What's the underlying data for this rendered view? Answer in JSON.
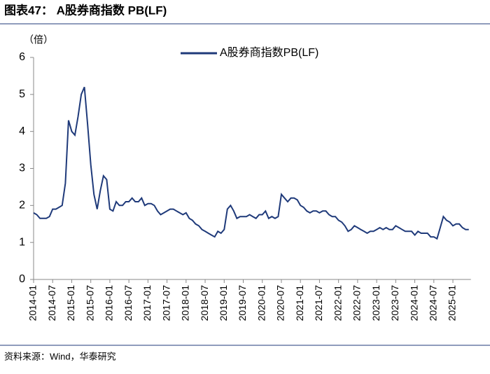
{
  "chart_data": {
    "type": "line",
    "title": "图表47：  A股券商指数 PB(LF)",
    "y_unit": "（倍）",
    "source": "资料来源：Wind，华泰研究",
    "x": [
      "2014-01",
      "2014-02",
      "2014-03",
      "2014-04",
      "2014-05",
      "2014-06",
      "2014-07",
      "2014-08",
      "2014-09",
      "2014-10",
      "2014-11",
      "2014-12",
      "2015-01",
      "2015-02",
      "2015-03",
      "2015-04",
      "2015-05",
      "2015-06",
      "2015-07",
      "2015-08",
      "2015-09",
      "2015-10",
      "2015-11",
      "2015-12",
      "2016-01",
      "2016-02",
      "2016-03",
      "2016-04",
      "2016-05",
      "2016-06",
      "2016-07",
      "2016-08",
      "2016-09",
      "2016-10",
      "2016-11",
      "2016-12",
      "2017-01",
      "2017-02",
      "2017-03",
      "2017-04",
      "2017-05",
      "2017-06",
      "2017-07",
      "2017-08",
      "2017-09",
      "2017-10",
      "2017-11",
      "2017-12",
      "2018-01",
      "2018-02",
      "2018-03",
      "2018-04",
      "2018-05",
      "2018-06",
      "2018-07",
      "2018-08",
      "2018-09",
      "2018-10",
      "2018-11",
      "2018-12",
      "2019-01",
      "2019-02",
      "2019-03",
      "2019-04",
      "2019-05",
      "2019-06",
      "2019-07",
      "2019-08",
      "2019-09",
      "2019-10",
      "2019-11",
      "2019-12",
      "2020-01",
      "2020-02",
      "2020-03",
      "2020-04",
      "2020-05",
      "2020-06",
      "2020-07",
      "2020-08",
      "2020-09",
      "2020-10",
      "2020-11",
      "2020-12",
      "2021-01",
      "2021-02",
      "2021-03",
      "2021-04",
      "2021-05",
      "2021-06",
      "2021-07",
      "2021-08",
      "2021-09",
      "2021-10",
      "2021-11",
      "2021-12",
      "2022-01",
      "2022-02",
      "2022-03",
      "2022-04",
      "2022-05",
      "2022-06",
      "2022-07",
      "2022-08",
      "2022-09",
      "2022-10",
      "2022-11",
      "2022-12",
      "2023-01",
      "2023-02",
      "2023-03",
      "2023-04",
      "2023-05",
      "2023-06",
      "2023-07",
      "2023-08",
      "2023-09",
      "2023-10",
      "2023-11",
      "2023-12",
      "2024-01",
      "2024-02",
      "2024-03",
      "2024-04",
      "2024-05",
      "2024-06",
      "2024-07",
      "2024-08",
      "2024-09",
      "2024-10",
      "2024-11",
      "2024-12",
      "2025-01",
      "2025-02",
      "2025-03",
      "2025-04",
      "2025-05",
      "2025-06"
    ],
    "xticks": [
      "2014-01",
      "2014-07",
      "2015-01",
      "2015-07",
      "2016-01",
      "2016-07",
      "2017-01",
      "2017-07",
      "2018-01",
      "2018-07",
      "2019-01",
      "2019-07",
      "2020-01",
      "2020-07",
      "2021-01",
      "2021-07",
      "2022-01",
      "2022-07",
      "2023-01",
      "2023-07",
      "2024-01",
      "2024-07",
      "2025-01"
    ],
    "series": [
      {
        "name": "A股券商指数PB(LF)",
        "color": "#1f3a7a",
        "values": [
          1.8,
          1.75,
          1.65,
          1.65,
          1.65,
          1.7,
          1.9,
          1.9,
          1.95,
          2.0,
          2.6,
          4.3,
          4.0,
          3.9,
          4.4,
          5.0,
          5.2,
          4.2,
          3.1,
          2.3,
          1.9,
          2.4,
          2.8,
          2.7,
          1.9,
          1.85,
          2.1,
          2.0,
          2.0,
          2.1,
          2.1,
          2.2,
          2.1,
          2.1,
          2.2,
          2.0,
          2.05,
          2.05,
          2.0,
          1.85,
          1.75,
          1.8,
          1.85,
          1.9,
          1.9,
          1.85,
          1.8,
          1.75,
          1.8,
          1.65,
          1.6,
          1.5,
          1.45,
          1.35,
          1.3,
          1.25,
          1.2,
          1.15,
          1.3,
          1.25,
          1.35,
          1.9,
          2.0,
          1.85,
          1.65,
          1.7,
          1.7,
          1.7,
          1.75,
          1.7,
          1.65,
          1.75,
          1.75,
          1.85,
          1.65,
          1.7,
          1.65,
          1.7,
          2.3,
          2.2,
          2.1,
          2.2,
          2.2,
          2.15,
          2.0,
          1.95,
          1.85,
          1.8,
          1.85,
          1.85,
          1.8,
          1.85,
          1.85,
          1.75,
          1.7,
          1.7,
          1.6,
          1.55,
          1.45,
          1.3,
          1.35,
          1.45,
          1.4,
          1.35,
          1.3,
          1.25,
          1.3,
          1.3,
          1.35,
          1.4,
          1.35,
          1.4,
          1.35,
          1.35,
          1.45,
          1.4,
          1.35,
          1.3,
          1.3,
          1.3,
          1.2,
          1.3,
          1.25,
          1.25,
          1.25,
          1.15,
          1.15,
          1.1,
          1.4,
          1.7,
          1.6,
          1.55,
          1.45,
          1.5,
          1.5,
          1.4,
          1.35,
          1.35
        ]
      }
    ],
    "ylim": [
      0,
      6
    ],
    "yticks": [
      0,
      1,
      2,
      3,
      4,
      5,
      6
    ],
    "legend": "top-right"
  }
}
